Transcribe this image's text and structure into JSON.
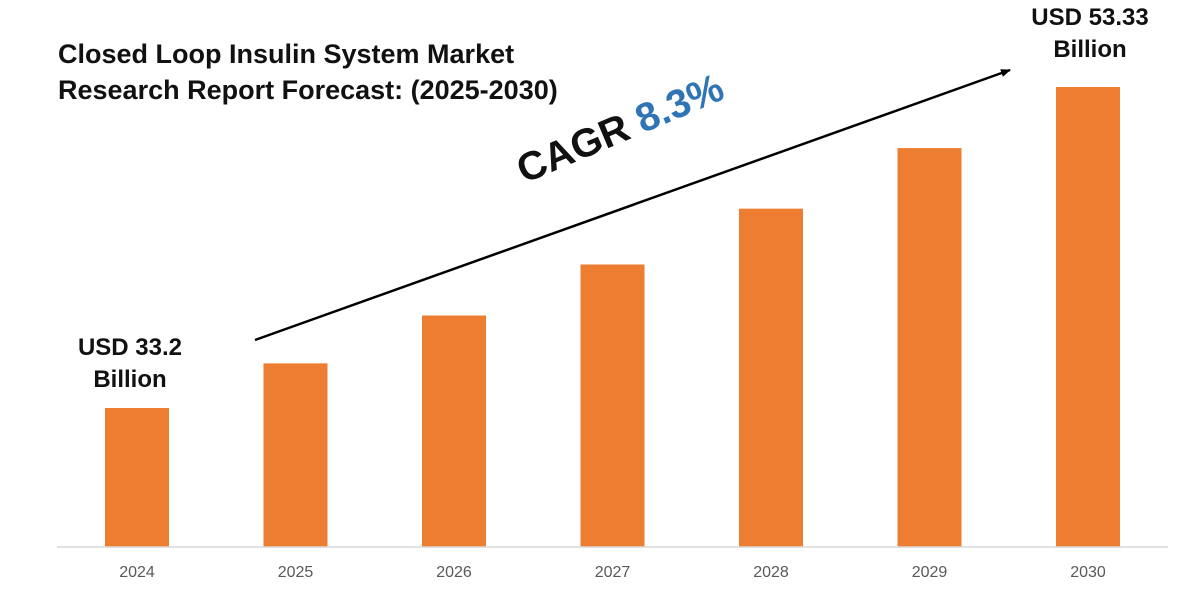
{
  "title_lines": [
    "Closed Loop Insulin System Market",
    "Research Report Forecast: (2025-2030)"
  ],
  "cagr": {
    "label": "CAGR",
    "value": "8.3%"
  },
  "callouts": {
    "start": {
      "line1": "USD 33.2",
      "line2": "Billion"
    },
    "end": {
      "line1": "USD 53.33",
      "line2": "Billion"
    }
  },
  "colors": {
    "bar": "#ed7d31",
    "value": "#2f74b5",
    "axis": "#d9d9d9",
    "tick": "#595959"
  },
  "chart_data": {
    "type": "bar",
    "title": "Closed Loop Insulin System Market Research Report Forecast: (2025-2030)",
    "categories": [
      "2024",
      "2025",
      "2026",
      "2027",
      "2028",
      "2029",
      "2030"
    ],
    "values": [
      33.2,
      36.0,
      39.0,
      42.2,
      45.7,
      49.5,
      53.33
    ],
    "unit": "USD Billion",
    "ylim": [
      20,
      56
    ],
    "xlabel": "",
    "ylabel": ""
  }
}
